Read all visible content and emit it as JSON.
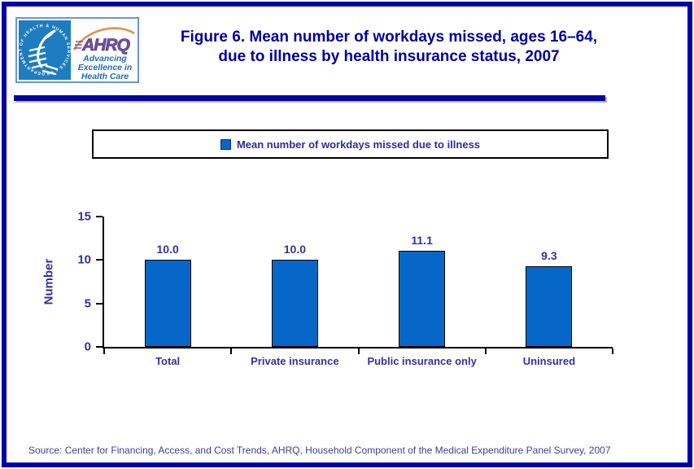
{
  "page": {
    "border_color": "#0000A8",
    "divider_color": "#00009C"
  },
  "logo": {
    "seal_text": "DEPARTMENT OF HEALTH & HUMAN SERVICES • USA",
    "acronym": "AHRQ",
    "tagline_line1": "Advancing",
    "tagline_line2": "Excellence in",
    "tagline_line3": "Health Care"
  },
  "header": {
    "title_line1": "Figure 6. Mean number of workdays missed, ages 16–64,",
    "title_line2": "due to illness by health insurance status, 2007"
  },
  "legend": {
    "label": "Mean number of workdays missed due to illness",
    "swatch_color": "#0667C8"
  },
  "chart_data": {
    "type": "bar",
    "title": "Figure 6. Mean number of workdays missed, ages 16–64, due to illness by health insurance status, 2007",
    "categories": [
      "Total",
      "Private insurance",
      "Public insurance only",
      "Uninsured"
    ],
    "values": [
      10.0,
      10.0,
      11.1,
      9.3
    ],
    "value_labels": [
      "10.0",
      "10.0",
      "11.1",
      "9.3"
    ],
    "xlabel": "",
    "ylabel": "Number",
    "ylim": [
      0,
      15
    ],
    "yticks": [
      0,
      5,
      10,
      15
    ],
    "bar_color": "#0667C8",
    "grid": false,
    "legend_entries": [
      "Mean number of workdays missed due to illness"
    ],
    "legend_position": "top"
  },
  "source": {
    "text": "Source: Center for Financing, Access, and Cost Trends, AHRQ, Household Component of the Medical Expenditure Panel Survey, 2007"
  }
}
